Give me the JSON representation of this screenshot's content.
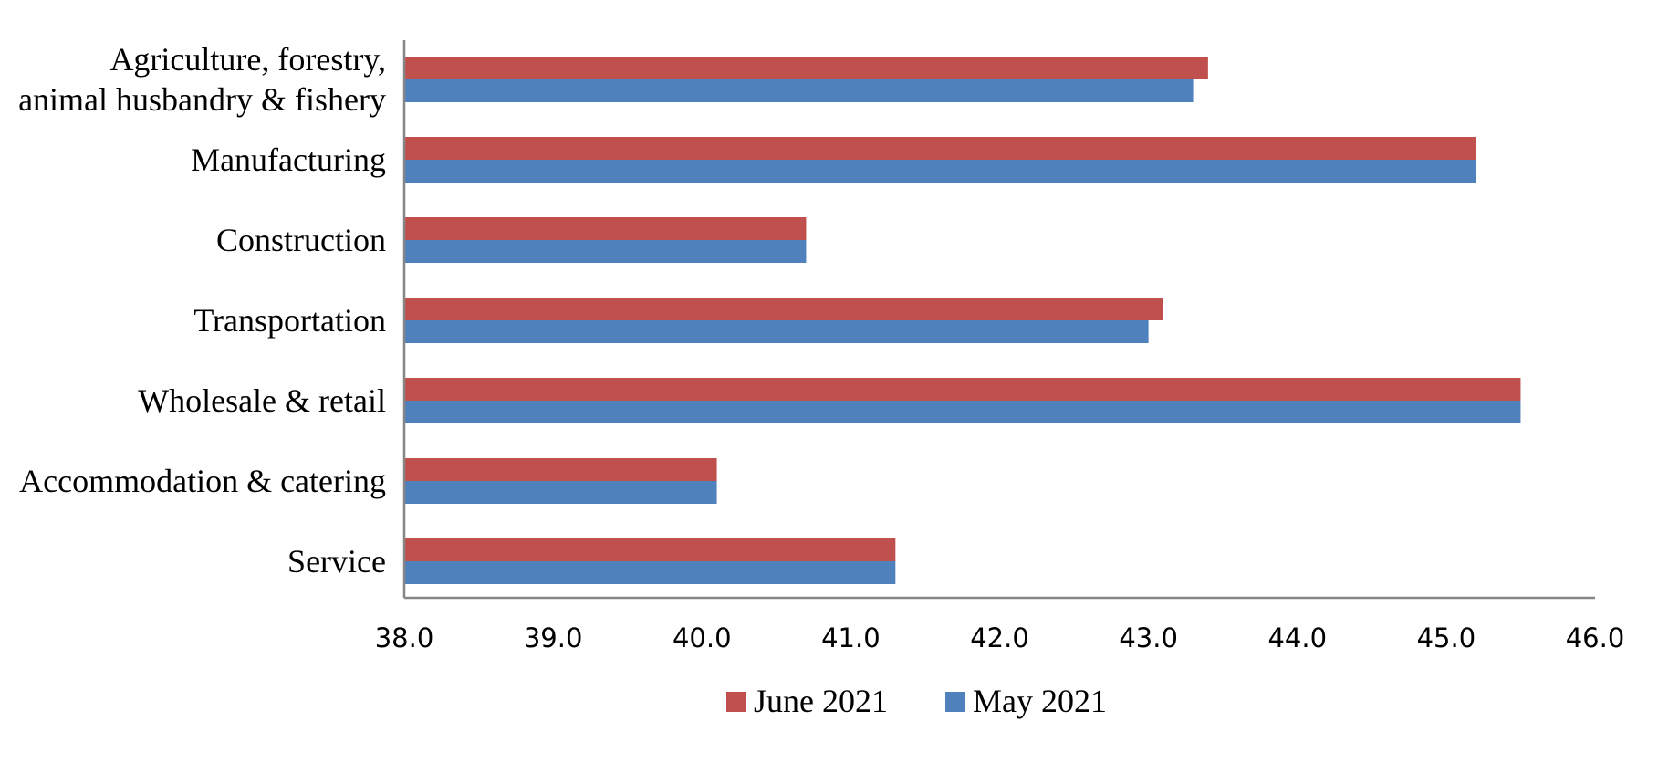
{
  "chart_data": {
    "type": "bar",
    "orientation": "horizontal",
    "categories": [
      [
        "Agriculture, forestry,",
        "animal husbandry & fishery"
      ],
      [
        "Manufacturing"
      ],
      [
        "Construction"
      ],
      [
        "Transportation"
      ],
      [
        "Wholesale & retail"
      ],
      [
        "Accommodation & catering"
      ],
      [
        "Service"
      ]
    ],
    "series": [
      {
        "name": "June 2021",
        "color": "#C0504D",
        "values": [
          43.4,
          45.2,
          40.7,
          43.1,
          45.5,
          40.1,
          41.3
        ]
      },
      {
        "name": "May 2021",
        "color": "#4F81BD",
        "values": [
          43.3,
          45.2,
          40.7,
          43.0,
          45.5,
          40.1,
          41.3
        ]
      }
    ],
    "xlim": [
      38.0,
      46.0
    ],
    "xticks": [
      "38.0",
      "39.0",
      "40.0",
      "41.0",
      "42.0",
      "43.0",
      "44.0",
      "45.0",
      "46.0"
    ],
    "legend_position": "bottom",
    "grid": false
  }
}
